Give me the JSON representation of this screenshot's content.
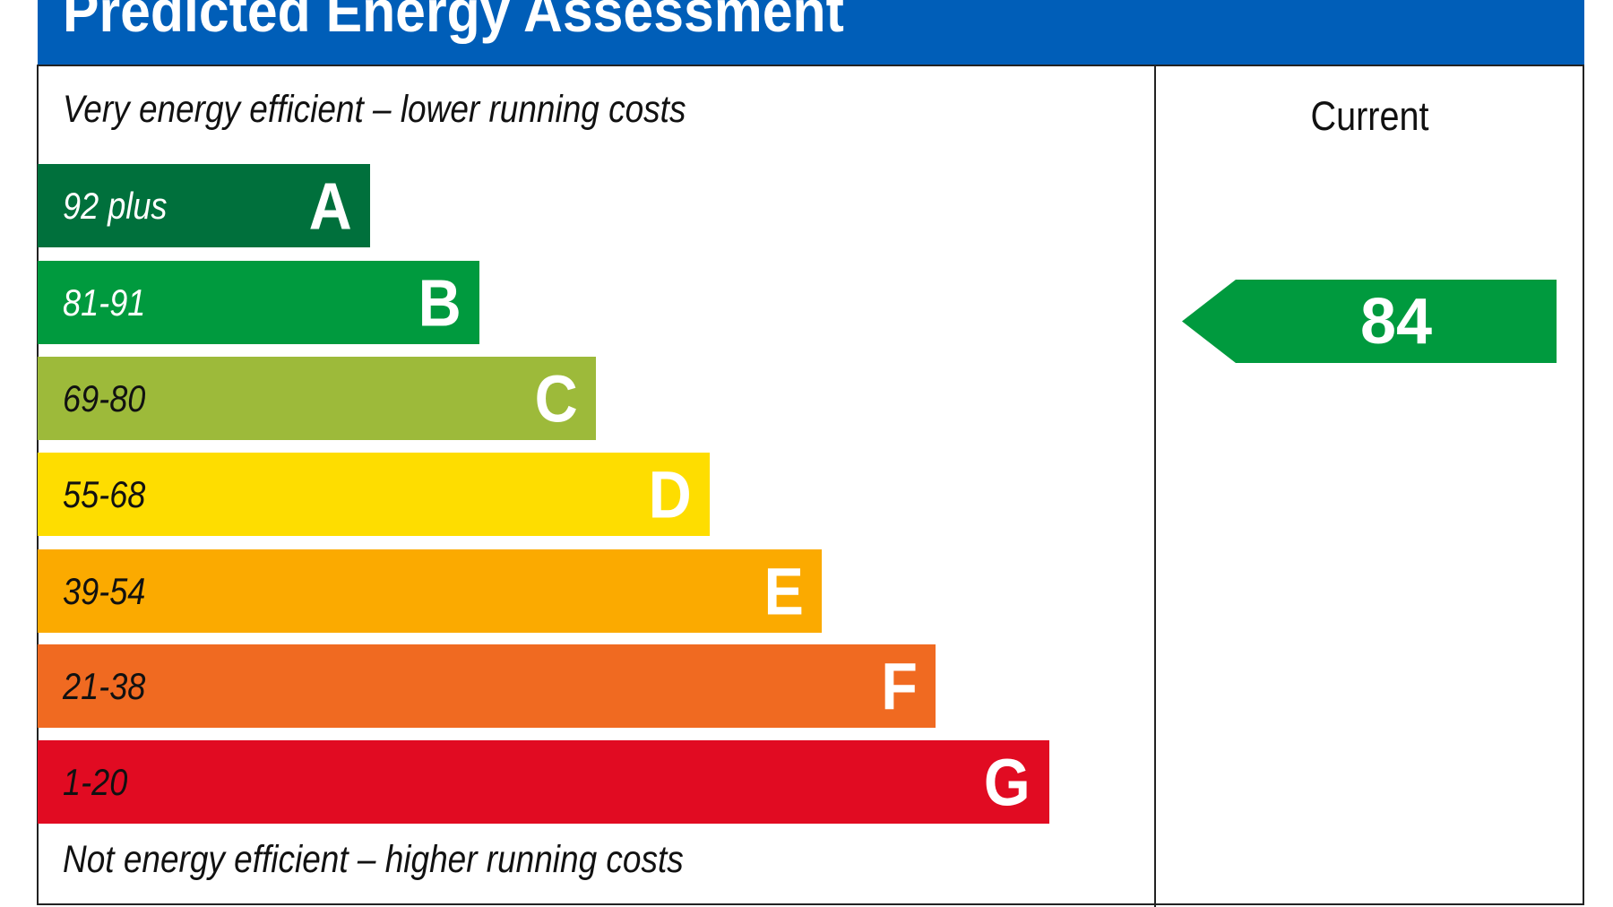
{
  "title": "Predicted Energy Assessment",
  "top_note": "Very energy efficient – lower running costs",
  "bottom_note": "Not energy efficient – higher running costs",
  "column_header": "Current",
  "chart_data": {
    "type": "bar",
    "title": "Predicted Energy Assessment",
    "bands": [
      {
        "letter": "A",
        "range": "92 plus",
        "color": "#00703C",
        "text_color": "#ffffff"
      },
      {
        "letter": "B",
        "range": "81-91",
        "color": "#009A3E",
        "text_color": "#ffffff"
      },
      {
        "letter": "C",
        "range": "69-80",
        "color": "#9DBA3A",
        "text_color": "#111111"
      },
      {
        "letter": "D",
        "range": "55-68",
        "color": "#FEDD00",
        "text_color": "#111111"
      },
      {
        "letter": "E",
        "range": "39-54",
        "color": "#FBAA00",
        "text_color": "#111111"
      },
      {
        "letter": "F",
        "range": "21-38",
        "color": "#F06A21",
        "text_color": "#111111"
      },
      {
        "letter": "G",
        "range": "1-20",
        "color": "#E10B22",
        "text_color": "#111111"
      }
    ],
    "current": {
      "value": "84",
      "band": "B",
      "color": "#009A3E"
    }
  }
}
